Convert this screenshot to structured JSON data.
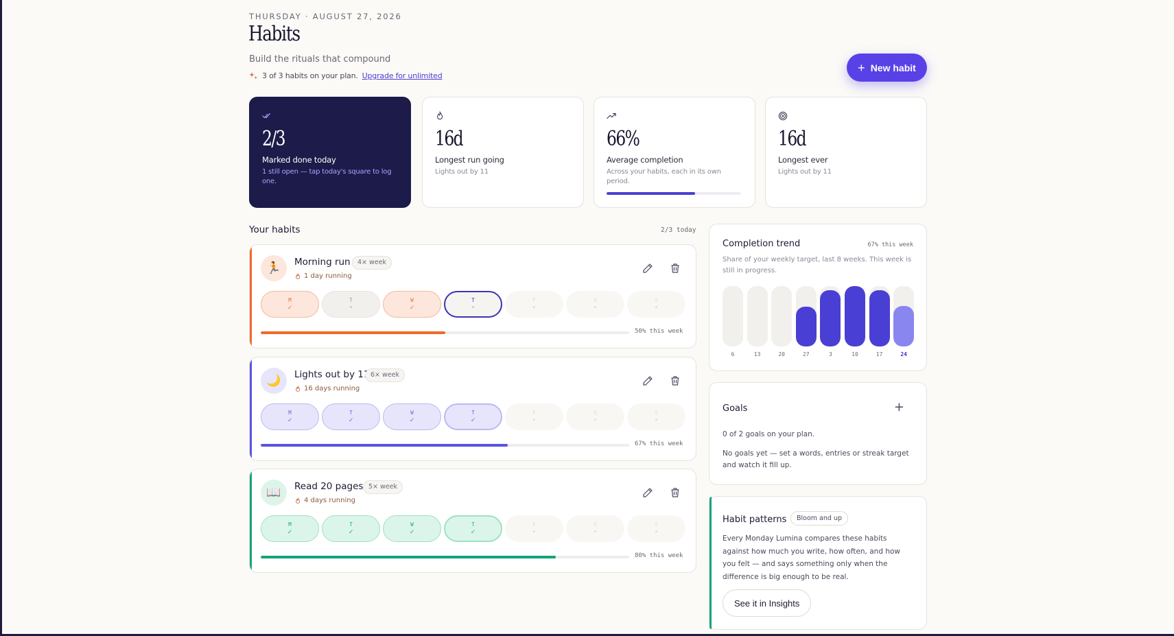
{
  "header": {
    "date": "THURSDAY · AUGUST 27, 2026",
    "title": "Habits",
    "subtitle": "Build the rituals that compound",
    "plan_text": "3 of 3 habits on your plan.",
    "upgrade_link": "Upgrade for unlimited",
    "new_habit_label": "New habit"
  },
  "stats": [
    {
      "icon": "double-check-icon",
      "value": "2/3",
      "label": "Marked done today",
      "sub": "1 still open — tap today's square to log one."
    },
    {
      "icon": "flame-icon",
      "value": "16d",
      "label": "Longest run going",
      "sub": "Lights out by 11"
    },
    {
      "icon": "trend-up-icon",
      "value": "66%",
      "label": "Average completion",
      "sub": "Across your habits, each in its own period.",
      "progress": 0.66
    },
    {
      "icon": "target-icon",
      "value": "16d",
      "label": "Longest ever",
      "sub": "Lights out by 11"
    }
  ],
  "habits_section": {
    "title": "Your habits",
    "today_summary": "2/3 today"
  },
  "habits": [
    {
      "name": "Morning run",
      "emoji": "🏃",
      "frequency": "4× week",
      "streak": "1 day running",
      "accent": "#ef6a2b",
      "tint": "#fde6dc",
      "tint_border": "#f4b89b",
      "check": "#e8703a",
      "days": [
        {
          "letter": "M",
          "state": "done"
        },
        {
          "letter": "T",
          "state": "missed"
        },
        {
          "letter": "W",
          "state": "done"
        },
        {
          "letter": "T",
          "state": "today-open"
        },
        {
          "letter": "F",
          "state": "future"
        },
        {
          "letter": "S",
          "state": "future"
        },
        {
          "letter": "S",
          "state": "future"
        }
      ],
      "progress": 0.5,
      "progress_label": "50% this week"
    },
    {
      "name": "Lights out by 11",
      "emoji": "🌙",
      "frequency": "6× week",
      "streak": "16 days running",
      "accent": "#5a52e0",
      "tint": "#e6e5fb",
      "tint_border": "#bdb8f2",
      "check": "#6a63e0",
      "days": [
        {
          "letter": "M",
          "state": "done"
        },
        {
          "letter": "T",
          "state": "done"
        },
        {
          "letter": "W",
          "state": "done"
        },
        {
          "letter": "T",
          "state": "today-done"
        },
        {
          "letter": "F",
          "state": "future"
        },
        {
          "letter": "S",
          "state": "future"
        },
        {
          "letter": "S",
          "state": "future"
        }
      ],
      "progress": 0.67,
      "progress_label": "67% this week"
    },
    {
      "name": "Read 20 pages",
      "emoji": "📖",
      "frequency": "5× week",
      "streak": "4 days running",
      "accent": "#16a37a",
      "tint": "#dcf5ea",
      "tint_border": "#9ee0c4",
      "check": "#1aa57c",
      "days": [
        {
          "letter": "M",
          "state": "done"
        },
        {
          "letter": "T",
          "state": "done"
        },
        {
          "letter": "W",
          "state": "done"
        },
        {
          "letter": "T",
          "state": "today-done"
        },
        {
          "letter": "F",
          "state": "future"
        },
        {
          "letter": "S",
          "state": "future"
        },
        {
          "letter": "S",
          "state": "future"
        }
      ],
      "progress": 0.8,
      "progress_label": "80% this week"
    }
  ],
  "trend": {
    "title": "Completion trend",
    "badge": "67% this week",
    "subtitle": "Share of your weekly target, last 8 weeks. This week is still in progress.",
    "weeks": [
      "6",
      "13",
      "20",
      "27",
      "3",
      "10",
      "17",
      "24"
    ],
    "values": [
      0,
      0,
      0,
      0.66,
      0.93,
      1.0,
      0.93,
      0.67
    ],
    "current_index": 7,
    "bar_color": "#4a3fd4",
    "current_color": "#8a86f0"
  },
  "goals": {
    "title": "Goals",
    "count": "0 of 2 goals on your plan.",
    "empty": "No goals yet — set a words, entries or streak target and watch it fill up."
  },
  "patterns": {
    "title": "Habit patterns",
    "chip": "Bloom and up",
    "body": "Every Monday Lumina compares these habits against how much you write, how often, and how you felt — and says something only when the difference is big enough to be real.",
    "button": "See it in Insights"
  }
}
